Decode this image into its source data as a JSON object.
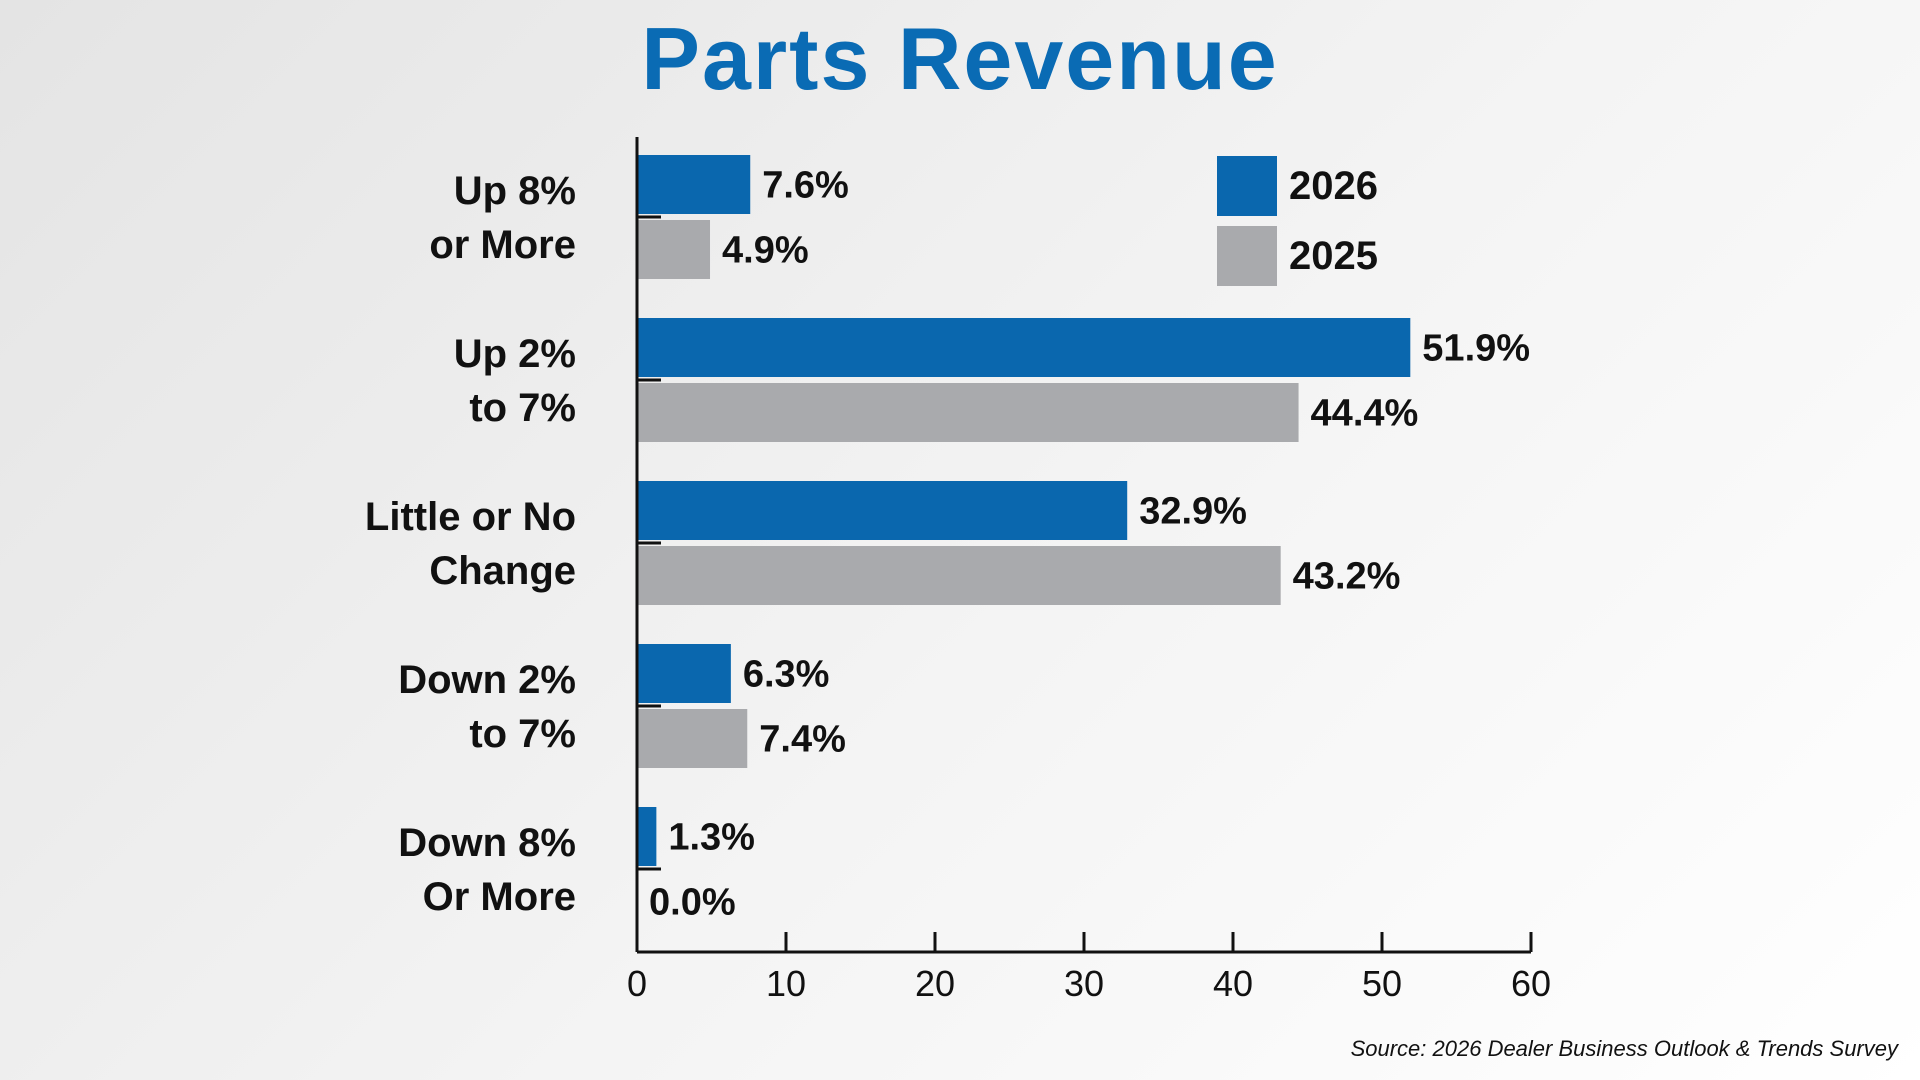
{
  "chart_data": {
    "type": "bar",
    "orientation": "horizontal",
    "title": "Parts Revenue",
    "categories": [
      [
        "Up 8%",
        "or More"
      ],
      [
        "Up 2%",
        "to 7%"
      ],
      [
        "Little or No",
        "Change"
      ],
      [
        "Down 2%",
        "to 7%"
      ],
      [
        "Down 8%",
        "Or More"
      ]
    ],
    "series": [
      {
        "name": "2026",
        "color": "#0a67ae",
        "values": [
          7.6,
          51.9,
          32.9,
          6.3,
          1.3
        ],
        "labels": [
          "7.6%",
          "51.9%",
          "32.9%",
          "6.3%",
          "1.3%"
        ]
      },
      {
        "name": "2025",
        "color": "#a9aaad",
        "values": [
          4.9,
          44.4,
          43.2,
          7.4,
          0.0
        ],
        "labels": [
          "4.9%",
          "44.4%",
          "43.2%",
          "7.4%",
          "0.0%"
        ]
      }
    ],
    "xlim": [
      0,
      60
    ],
    "xticks": [
      0,
      10,
      20,
      30,
      40,
      50,
      60
    ],
    "xlabel": "",
    "ylabel": "",
    "grid": false,
    "legend_position": "top-right"
  },
  "source": "Source: 2026 Dealer Business Outlook & Trends Survey"
}
